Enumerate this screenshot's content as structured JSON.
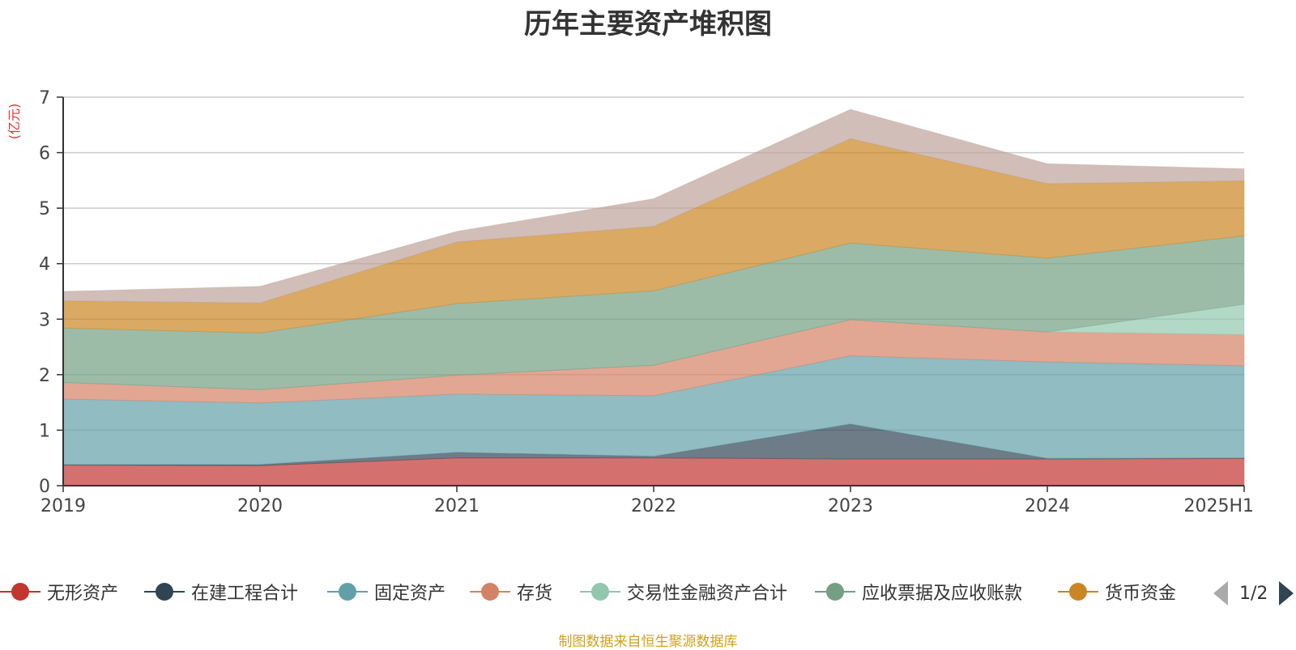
{
  "chart_data": {
    "type": "area",
    "stacked": true,
    "title": "历年主要资产堆积图",
    "unit": "(亿元)",
    "categories": [
      "2019",
      "2020",
      "2021",
      "2022",
      "2023",
      "2024",
      "2025H1"
    ],
    "ylim": [
      0,
      7
    ],
    "yticks": [
      "0",
      "1",
      "2",
      "3",
      "4",
      "5",
      "6",
      "7"
    ],
    "grid": true,
    "legend_position": "bottom",
    "series": [
      {
        "name": "无形资产",
        "color": "#c23531",
        "values": [
          0.37,
          0.36,
          0.5,
          0.5,
          0.48,
          0.48,
          0.49
        ]
      },
      {
        "name": "在建工程合计",
        "color": "#2f4554",
        "values": [
          0.01,
          0.02,
          0.1,
          0.03,
          0.63,
          0.01,
          0.01
        ]
      },
      {
        "name": "固定资产",
        "color": "#61a0a8",
        "values": [
          1.18,
          1.11,
          1.05,
          1.09,
          1.23,
          1.74,
          1.66
        ]
      },
      {
        "name": "存货",
        "color": "#d48265",
        "values": [
          0.3,
          0.24,
          0.34,
          0.55,
          0.65,
          0.54,
          0.56
        ]
      },
      {
        "name": "交易性金融资产合计",
        "color": "#91c7ae",
        "values": [
          0,
          0,
          0,
          0,
          0,
          0,
          0.55
        ]
      },
      {
        "name": "应收票据及应收账款",
        "color": "#749f83",
        "values": [
          0.98,
          1.02,
          1.29,
          1.34,
          1.38,
          1.33,
          1.23
        ]
      },
      {
        "name": "货币资金",
        "color": "#ca8622",
        "values": [
          0.49,
          0.54,
          1.11,
          1.16,
          1.88,
          1.34,
          0.99
        ]
      },
      {
        "name": "",
        "color": "#bda29a",
        "values": [
          0.17,
          0.3,
          0.19,
          0.5,
          0.53,
          0.36,
          0.22
        ]
      }
    ]
  },
  "legend": {
    "items": [
      "无形资产",
      "在建工程合计",
      "固定资产",
      "存货",
      "交易性金融资产合计",
      "应收票据及应收账款",
      "货币资金"
    ],
    "page": "1/2"
  },
  "source_note": "制图数据来自恒生聚源数据库"
}
